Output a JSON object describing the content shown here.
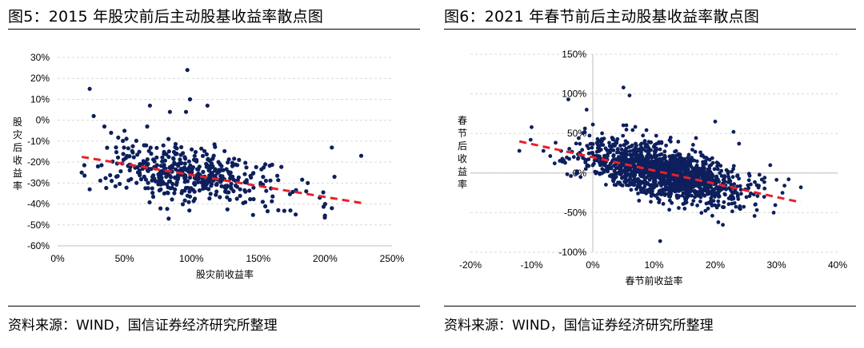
{
  "charts": [
    {
      "figure_title": "图5：2015 年股灾前后主动股基收益率散点图",
      "source": "资料来源：WIND，国信证券经济研究所整理"
    },
    {
      "figure_title": "图6：2021 年春节前后主动股基收益率散点图",
      "source": "资料来源：WIND，国信证券经济研究所整理"
    }
  ],
  "colors": {
    "points": "#0d1f5c",
    "trendline": "#e8202a",
    "grid": "#d9d9d9"
  },
  "chart_data": [
    {
      "type": "scatter",
      "xlabel": "股灾前收益率",
      "ylabel": "股灾后收益率",
      "xlim": [
        0,
        250
      ],
      "ylim": [
        -60,
        30
      ],
      "x_ticks": [
        0,
        50,
        100,
        150,
        200,
        250
      ],
      "x_tick_labels": [
        "0%",
        "50%",
        "100%",
        "150%",
        "200%",
        "250%"
      ],
      "y_ticks": [
        30,
        20,
        10,
        0,
        -10,
        -20,
        -30,
        -40,
        -50,
        -60
      ],
      "y_tick_labels": [
        "30%",
        "20%",
        "10%",
        "0%",
        "-10%",
        "-20%",
        "-30%",
        "-40%",
        "-50%",
        "-60%"
      ],
      "grid": "horizontal dashed",
      "trendline": {
        "x": [
          18,
          227
        ],
        "y": [
          -17.5,
          -39.5
        ]
      },
      "cluster": {
        "n": 440,
        "seed": 7,
        "x_mean": 100,
        "x_sd": 32,
        "y_intercept": -15.6,
        "y_slope": -0.105,
        "y_sd": 6.5,
        "x_min": 20,
        "x_max": 220
      },
      "points": [
        {
          "x": 24,
          "y": 15
        },
        {
          "x": 27,
          "y": 2
        },
        {
          "x": 97,
          "y": 24
        },
        {
          "x": 99,
          "y": 10
        },
        {
          "x": 112,
          "y": 7
        },
        {
          "x": 69,
          "y": 7
        },
        {
          "x": 84,
          "y": 4
        },
        {
          "x": 96,
          "y": 4
        },
        {
          "x": 18,
          "y": -25
        },
        {
          "x": 24,
          "y": -33
        },
        {
          "x": 227,
          "y": -17
        },
        {
          "x": 205,
          "y": -13
        },
        {
          "x": 207,
          "y": -27
        },
        {
          "x": 205,
          "y": -42
        },
        {
          "x": 178,
          "y": -45
        },
        {
          "x": 83,
          "y": -47
        },
        {
          "x": 196,
          "y": -37
        },
        {
          "x": 187,
          "y": -30
        },
        {
          "x": 165,
          "y": -43
        },
        {
          "x": 35,
          "y": -3
        },
        {
          "x": 50,
          "y": -5
        },
        {
          "x": 40,
          "y": -6
        },
        {
          "x": 67,
          "y": -3
        },
        {
          "x": 200,
          "y": -40
        }
      ]
    },
    {
      "type": "scatter",
      "xlabel": "春节前收益率",
      "ylabel": "春节后收益率",
      "xlim": [
        -20,
        40
      ],
      "ylim": [
        -100,
        150
      ],
      "x_ticks": [
        -20,
        -10,
        0,
        10,
        20,
        30,
        40
      ],
      "x_tick_labels": [
        "-20%",
        "-10%",
        "0%",
        "10%",
        "20%",
        "30%",
        "40%"
      ],
      "y_ticks": [
        150,
        100,
        50,
        0,
        -50,
        -100
      ],
      "y_tick_labels": [
        "150%",
        "100%",
        "50%",
        "0%",
        "-50%",
        "-100%"
      ],
      "grid": "horizontal dashed",
      "trendline": {
        "x": [
          -12,
          34
        ],
        "y": [
          40,
          -37
        ]
      },
      "cluster": {
        "n": 1500,
        "seed": 21,
        "x_mean": 12,
        "x_sd": 6.5,
        "y_intercept": 20,
        "y_slope": -1.7,
        "y_sd": 16,
        "x_min": -12,
        "x_max": 34
      },
      "points": [
        {
          "x": 5,
          "y": 108
        },
        {
          "x": 6,
          "y": 98
        },
        {
          "x": -4,
          "y": 93
        },
        {
          "x": -1,
          "y": 80
        },
        {
          "x": 11,
          "y": -86
        },
        {
          "x": 20,
          "y": 65
        },
        {
          "x": 23,
          "y": 52
        },
        {
          "x": 34,
          "y": -18
        },
        {
          "x": 32,
          "y": -8
        },
        {
          "x": 29,
          "y": 10
        },
        {
          "x": -12,
          "y": 28
        },
        {
          "x": -10,
          "y": 58
        },
        {
          "x": 28,
          "y": -30
        },
        {
          "x": 31,
          "y": -25
        },
        {
          "x": 15,
          "y": -45
        },
        {
          "x": -2,
          "y": -5
        }
      ]
    }
  ]
}
